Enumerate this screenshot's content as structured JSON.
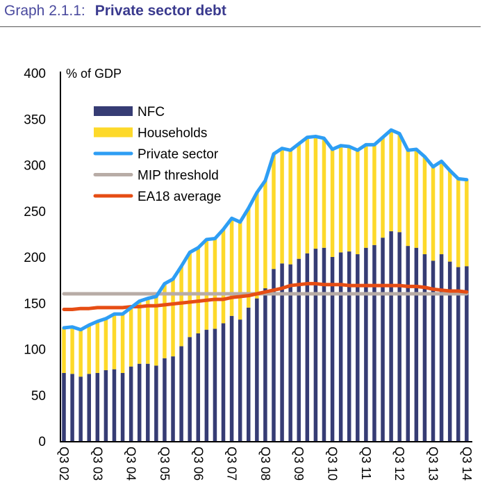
{
  "header": {
    "label": "Graph 2.1.1:",
    "title": "Private sector debt"
  },
  "chart_data": {
    "type": "bar",
    "stacked": true,
    "ylabel": "% of GDP",
    "ylim": [
      0,
      400
    ],
    "yticks": [
      0,
      50,
      100,
      150,
      200,
      250,
      300,
      350,
      400
    ],
    "xtick_labels": [
      "Q3 02",
      "Q3 03",
      "Q3 04",
      "Q3 05",
      "Q3 06",
      "Q3 07",
      "Q3 08",
      "Q3 09",
      "Q3 10",
      "Q3 11",
      "Q3 12",
      "Q3 13",
      "Q3 14"
    ],
    "x_start": "Q3 02",
    "x_end": "Q3 14",
    "frequency": "quarterly",
    "legend_position": "top-left",
    "colors": {
      "NFC": "#363c74",
      "Households": "#fdd92a",
      "Private sector": "#2e9ef4",
      "MIP threshold": "#b8aca6",
      "EA18 average": "#e64d14"
    },
    "series": [
      {
        "name": "NFC",
        "kind": "bar",
        "values": [
          74,
          73,
          70,
          73,
          74,
          77,
          78,
          74,
          81,
          84,
          84,
          82,
          90,
          92,
          103,
          113,
          117,
          121,
          122,
          128,
          136,
          132,
          145,
          155,
          166,
          187,
          193,
          192,
          198,
          204,
          209,
          210,
          200,
          205,
          206,
          203,
          210,
          213,
          221,
          228,
          227,
          212,
          210,
          203,
          196,
          203,
          195,
          189,
          190
        ]
      },
      {
        "name": "Households",
        "kind": "bar",
        "values": [
          49,
          51,
          51,
          53,
          56,
          56,
          60,
          64,
          64,
          68,
          71,
          75,
          81,
          84,
          87,
          92,
          93,
          98,
          98,
          102,
          106,
          106,
          108,
          115,
          117,
          125,
          125,
          124,
          125,
          126,
          122,
          119,
          117,
          116,
          114,
          113,
          112,
          109,
          109,
          110,
          107,
          104,
          107,
          106,
          102,
          101,
          99,
          96,
          94
        ]
      },
      {
        "name": "Private sector",
        "kind": "line",
        "values": [
          123,
          124,
          121,
          126,
          130,
          133,
          138,
          138,
          145,
          152,
          155,
          157,
          171,
          176,
          190,
          205,
          210,
          219,
          220,
          230,
          242,
          238,
          253,
          270,
          283,
          312,
          318,
          316,
          323,
          330,
          331,
          329,
          317,
          321,
          320,
          316,
          322,
          322,
          330,
          338,
          334,
          316,
          317,
          309,
          298,
          304,
          294,
          285,
          284
        ]
      },
      {
        "name": "MIP threshold",
        "kind": "line",
        "values": [
          160,
          160,
          160,
          160,
          160,
          160,
          160,
          160,
          160,
          160,
          160,
          160,
          160,
          160,
          160,
          160,
          160,
          160,
          160,
          160,
          160,
          160,
          160,
          160,
          160,
          160,
          160,
          160,
          160,
          160,
          160,
          160,
          160,
          160,
          160,
          160,
          160,
          160,
          160,
          160,
          160,
          160,
          160,
          160,
          160,
          160,
          160,
          160,
          160
        ]
      },
      {
        "name": "EA18 average",
        "kind": "line",
        "values": [
          143,
          143,
          144,
          144,
          145,
          145,
          145,
          145,
          146,
          146,
          147,
          147,
          148,
          149,
          150,
          151,
          152,
          153,
          154,
          154,
          156,
          157,
          158,
          160,
          162,
          164,
          166,
          169,
          170,
          171,
          171,
          170,
          170,
          170,
          169,
          169,
          169,
          169,
          169,
          169,
          169,
          168,
          168,
          167,
          165,
          164,
          163,
          163,
          162
        ]
      }
    ]
  }
}
